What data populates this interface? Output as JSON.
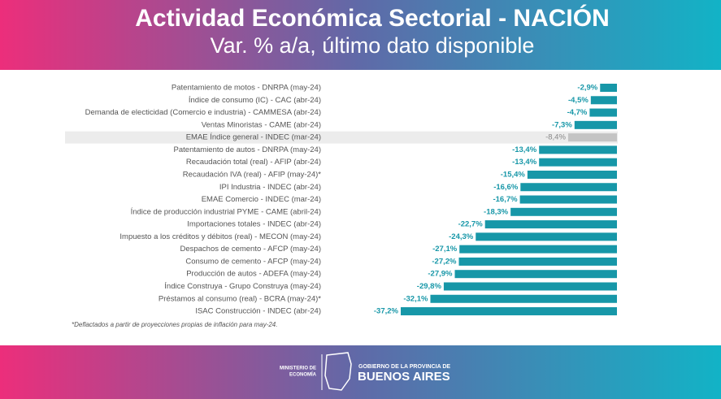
{
  "chart_data": {
    "type": "bar",
    "orientation": "horizontal",
    "title": "Actividad Económica Sectorial - NACIÓN",
    "subtitle": "Var. % a/a, último dato disponible",
    "categories": [
      "Patentamiento de motos - DNRPA (may-24)",
      "Índice de consumo (IC) - CAC (abr-24)",
      "Demanda de electicidad (Comercio e industria) - CAMMESA (abr-24)",
      "Ventas Minoristas - CAME (abr-24)",
      "EMAE Índice general - INDEC (mar-24)",
      "Patentamiento de autos - DNRPA (may-24)",
      "Recaudación total (real) - AFIP (abr-24)",
      "Recaudación IVA (real) - AFIP (may-24)*",
      "IPI Industria - INDEC (abr-24)",
      "EMAE Comercio - INDEC (mar-24)",
      "Índice de producción industrial PYME - CAME (abril-24)",
      "Importaciones totales - INDEC (abr-24)",
      "Impuesto a los créditos y débitos (real) - MECON (may-24)",
      "Despachos de cemento - AFCP (may-24)",
      "Consumo de cemento - AFCP (may-24)",
      "Producción de autos - ADEFA (may-24)",
      "Índice Construya - Grupo Construya (may-24)",
      "Préstamos al consumo (real) - BCRA (may-24)*",
      "ISAC Construcción - INDEC (abr-24)"
    ],
    "values": [
      -2.9,
      -4.5,
      -4.7,
      -7.3,
      -8.4,
      -13.4,
      -13.4,
      -15.4,
      -16.6,
      -16.7,
      -18.3,
      -22.7,
      -24.3,
      -27.1,
      -27.2,
      -27.9,
      -29.8,
      -32.1,
      -37.2
    ],
    "value_labels": [
      "-2,9%",
      "-4,5%",
      "-4,7%",
      "-7,3%",
      "-8,4%",
      "-13,4%",
      "-13,4%",
      "-15,4%",
      "-16,6%",
      "-16,7%",
      "-18,3%",
      "-22,7%",
      "-24,3%",
      "-27,1%",
      "-27,2%",
      "-27,9%",
      "-29,8%",
      "-32,1%",
      "-37,2%"
    ],
    "colors": [
      "#1797a8",
      "#1797a8",
      "#1797a8",
      "#1797a8",
      "#c4c4c4",
      "#1797a8",
      "#1797a8",
      "#1797a8",
      "#1797a8",
      "#1797a8",
      "#1797a8",
      "#1797a8",
      "#1797a8",
      "#1797a8",
      "#1797a8",
      "#1797a8",
      "#1797a8",
      "#1797a8",
      "#1797a8"
    ],
    "footnote": "*Deflactados a partir de proyecciones propias de inflación para may-24."
  },
  "footer": {
    "ministry_line1": "MINISTERIO DE",
    "ministry_line2": "ECONOMÍA",
    "gov_line1": "GOBIERNO DE LA PROVINCIA DE",
    "gov_line2": "BUENOS AIRES"
  }
}
